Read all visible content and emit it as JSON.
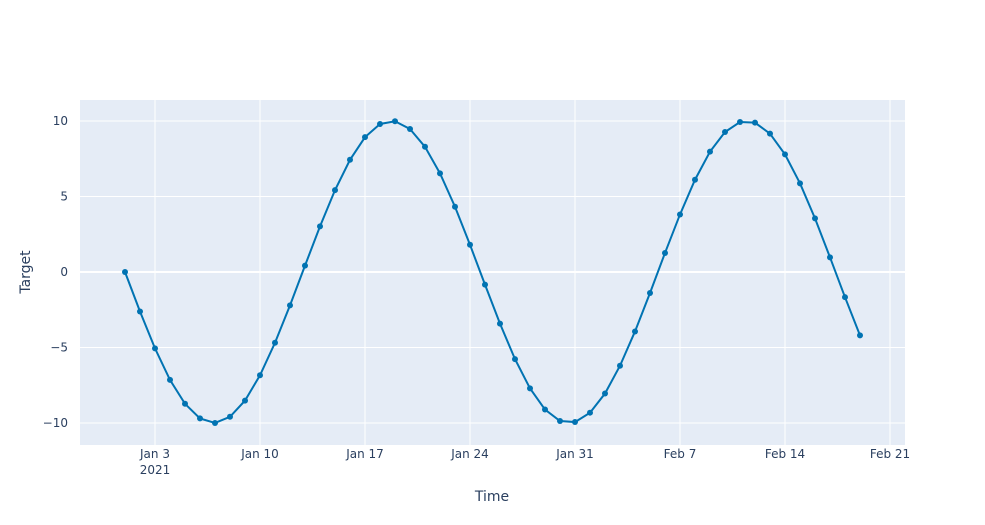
{
  "chart_data": {
    "type": "line",
    "xlabel": "Time",
    "ylabel": "Target",
    "x": [
      "2021-01-01",
      "2021-01-02",
      "2021-01-03",
      "2021-01-04",
      "2021-01-05",
      "2021-01-06",
      "2021-01-07",
      "2021-01-08",
      "2021-01-09",
      "2021-01-10",
      "2021-01-11",
      "2021-01-12",
      "2021-01-13",
      "2021-01-14",
      "2021-01-15",
      "2021-01-16",
      "2021-01-17",
      "2021-01-18",
      "2021-01-19",
      "2021-01-20",
      "2021-01-21",
      "2021-01-22",
      "2021-01-23",
      "2021-01-24",
      "2021-01-25",
      "2021-01-26",
      "2021-01-27",
      "2021-01-28",
      "2021-01-29",
      "2021-01-30",
      "2021-01-31",
      "2021-02-01",
      "2021-02-02",
      "2021-02-03",
      "2021-02-04",
      "2021-02-05",
      "2021-02-06",
      "2021-02-07",
      "2021-02-08",
      "2021-02-09",
      "2021-02-10",
      "2021-02-11",
      "2021-02-12",
      "2021-02-13",
      "2021-02-14",
      "2021-02-15",
      "2021-02-16",
      "2021-02-17",
      "2021-02-18",
      "2021-02-19"
    ],
    "series": [
      {
        "color": "#0173b2",
        "values": [
          0,
          -2.62,
          -5.06,
          -7.15,
          -8.73,
          -9.7,
          -10.0,
          -9.59,
          -8.52,
          -6.84,
          -4.69,
          -2.21,
          0.42,
          3.02,
          5.42,
          7.43,
          8.93,
          9.8,
          9.98,
          9.47,
          8.29,
          6.53,
          4.32,
          1.8,
          -0.84,
          -3.42,
          -5.77,
          -7.71,
          -9.11,
          -9.87,
          -9.94,
          -9.32,
          -8.05,
          -6.21,
          -3.94,
          -1.39,
          1.26,
          3.81,
          6.11,
          7.97,
          9.27,
          9.93,
          9.89,
          9.16,
          7.79,
          5.87,
          3.55,
          0.97,
          -1.67,
          -4.2
        ]
      }
    ],
    "xlim": [
      "2020-12-29",
      "2021-02-22"
    ],
    "xticks": [
      {
        "value": "2021-01-03",
        "label": "Jan 3\n2021"
      },
      {
        "value": "2021-01-10",
        "label": "Jan 10"
      },
      {
        "value": "2021-01-17",
        "label": "Jan 17"
      },
      {
        "value": "2021-01-24",
        "label": "Jan 24"
      },
      {
        "value": "2021-01-31",
        "label": "Jan 31"
      },
      {
        "value": "2021-02-07",
        "label": "Feb 7"
      },
      {
        "value": "2021-02-14",
        "label": "Feb 14"
      },
      {
        "value": "2021-02-21",
        "label": "Feb 21"
      }
    ],
    "ylim": [
      -11.46,
      11.39
    ],
    "yticks": [
      -10,
      -5,
      0,
      5,
      10
    ],
    "grid": true
  }
}
